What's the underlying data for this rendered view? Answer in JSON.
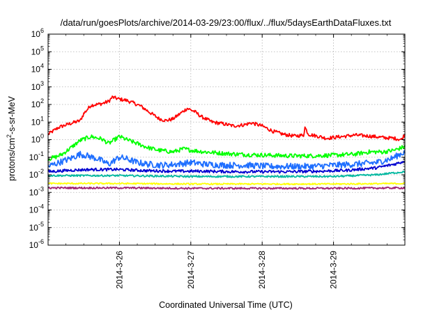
{
  "chart_data": {
    "type": "line",
    "title": "/data/run/goesPlots/archive/2014-03-29/23:00/flux/../flux/5daysEarthDataFluxes.txt",
    "xlabel": "Coordinated Universal Time (UTC)",
    "ylabel": {
      "base": "protons/cm",
      "sup": "2",
      "rest": "-s-sr-MeV"
    },
    "x_range": [
      "2014-03-25 00:00",
      "2014-03-30 00:00"
    ],
    "x_ticks": [
      "2014-3-26",
      "2014-3-27",
      "2014-3-28",
      "2014-3-29"
    ],
    "y_scale": "log",
    "ylim": [
      1e-06,
      1000000.0
    ],
    "y_tick_exponents": [
      -6,
      -5,
      -4,
      -3,
      -2,
      -1,
      0,
      1,
      2,
      3,
      4,
      5,
      6
    ],
    "y_tick_base": "10",
    "grid": true,
    "series": [
      {
        "color": "#ff0000",
        "noise": 0.1,
        "values": [
          [
            0.0,
            2
          ],
          [
            0.15,
            5
          ],
          [
            0.3,
            8
          ],
          [
            0.45,
            12
          ],
          [
            0.5,
            30
          ],
          [
            0.6,
            90
          ],
          [
            0.75,
            110
          ],
          [
            0.85,
            150
          ],
          [
            0.9,
            260
          ],
          [
            1.0,
            200
          ],
          [
            1.1,
            170
          ],
          [
            1.2,
            120
          ],
          [
            1.3,
            80
          ],
          [
            1.45,
            30
          ],
          [
            1.55,
            16
          ],
          [
            1.65,
            12
          ],
          [
            1.75,
            15
          ],
          [
            1.85,
            30
          ],
          [
            1.95,
            60
          ],
          [
            2.05,
            40
          ],
          [
            2.15,
            20
          ],
          [
            2.3,
            10
          ],
          [
            2.45,
            8
          ],
          [
            2.6,
            6
          ],
          [
            2.75,
            7
          ],
          [
            2.85,
            9
          ],
          [
            3.0,
            6
          ],
          [
            3.15,
            3
          ],
          [
            3.3,
            2
          ],
          [
            3.45,
            1.6
          ],
          [
            3.58,
            1.8
          ],
          [
            3.6,
            5
          ],
          [
            3.65,
            2
          ],
          [
            3.8,
            1.5
          ],
          [
            3.9,
            1.2
          ],
          [
            4.05,
            1.4
          ],
          [
            4.3,
            1.8
          ],
          [
            4.5,
            1.6
          ],
          [
            4.7,
            1.3
          ],
          [
            4.85,
            1.2
          ],
          [
            4.95,
            1.0
          ],
          [
            5.0,
            2
          ]
        ]
      },
      {
        "color": "#00ff00",
        "noise": 0.12,
        "values": [
          [
            0.0,
            0.08
          ],
          [
            0.1,
            0.1
          ],
          [
            0.2,
            0.15
          ],
          [
            0.3,
            0.3
          ],
          [
            0.45,
            0.9
          ],
          [
            0.6,
            1.5
          ],
          [
            0.75,
            1.1
          ],
          [
            0.85,
            0.6
          ],
          [
            1.0,
            1.5
          ],
          [
            1.1,
            1.0
          ],
          [
            1.25,
            0.6
          ],
          [
            1.4,
            0.35
          ],
          [
            1.55,
            0.25
          ],
          [
            1.75,
            0.2
          ],
          [
            1.9,
            0.3
          ],
          [
            2.0,
            0.25
          ],
          [
            2.2,
            0.2
          ],
          [
            2.5,
            0.16
          ],
          [
            2.8,
            0.14
          ],
          [
            3.1,
            0.13
          ],
          [
            3.4,
            0.12
          ],
          [
            3.7,
            0.12
          ],
          [
            4.0,
            0.13
          ],
          [
            4.3,
            0.15
          ],
          [
            4.5,
            0.2
          ],
          [
            4.7,
            0.2
          ],
          [
            4.85,
            0.25
          ],
          [
            5.0,
            0.4
          ]
        ]
      },
      {
        "color": "#1f6fff",
        "noise": 0.18,
        "values": [
          [
            0.0,
            0.03
          ],
          [
            0.15,
            0.05
          ],
          [
            0.3,
            0.08
          ],
          [
            0.45,
            0.15
          ],
          [
            0.55,
            0.12
          ],
          [
            0.7,
            0.08
          ],
          [
            0.85,
            0.04
          ],
          [
            1.0,
            0.1
          ],
          [
            1.1,
            0.08
          ],
          [
            1.25,
            0.05
          ],
          [
            1.4,
            0.04
          ],
          [
            1.6,
            0.035
          ],
          [
            1.8,
            0.04
          ],
          [
            2.0,
            0.05
          ],
          [
            2.2,
            0.04
          ],
          [
            2.5,
            0.035
          ],
          [
            2.8,
            0.035
          ],
          [
            3.1,
            0.03
          ],
          [
            3.4,
            0.03
          ],
          [
            3.7,
            0.03
          ],
          [
            4.0,
            0.035
          ],
          [
            4.3,
            0.04
          ],
          [
            4.6,
            0.05
          ],
          [
            4.8,
            0.08
          ],
          [
            5.0,
            0.2
          ]
        ]
      },
      {
        "color": "#0000d0",
        "noise": 0.08,
        "values": [
          [
            0.0,
            0.015
          ],
          [
            0.3,
            0.018
          ],
          [
            0.6,
            0.02
          ],
          [
            1.0,
            0.02
          ],
          [
            1.4,
            0.017
          ],
          [
            1.8,
            0.016
          ],
          [
            2.2,
            0.016
          ],
          [
            2.6,
            0.015
          ],
          [
            3.0,
            0.015
          ],
          [
            3.4,
            0.015
          ],
          [
            3.8,
            0.016
          ],
          [
            4.2,
            0.018
          ],
          [
            4.6,
            0.025
          ],
          [
            4.85,
            0.04
          ],
          [
            5.0,
            0.06
          ]
        ]
      },
      {
        "color": "#00b8a0",
        "noise": 0.05,
        "values": [
          [
            0.0,
            0.009
          ],
          [
            1.0,
            0.009
          ],
          [
            2.0,
            0.008
          ],
          [
            3.0,
            0.008
          ],
          [
            4.0,
            0.008
          ],
          [
            4.6,
            0.01
          ],
          [
            5.0,
            0.015
          ]
        ]
      },
      {
        "color": "#ffff00",
        "noise": 0.04,
        "values": [
          [
            0.0,
            0.0032
          ],
          [
            1.0,
            0.0032
          ],
          [
            2.0,
            0.003
          ],
          [
            3.0,
            0.003
          ],
          [
            4.0,
            0.003
          ],
          [
            5.0,
            0.0032
          ]
        ]
      },
      {
        "color": "#a02070",
        "noise": 0.05,
        "values": [
          [
            0.0,
            0.0018
          ],
          [
            1.0,
            0.0018
          ],
          [
            2.0,
            0.0017
          ],
          [
            3.0,
            0.0017
          ],
          [
            4.0,
            0.0017
          ],
          [
            5.0,
            0.0018
          ]
        ]
      }
    ]
  }
}
